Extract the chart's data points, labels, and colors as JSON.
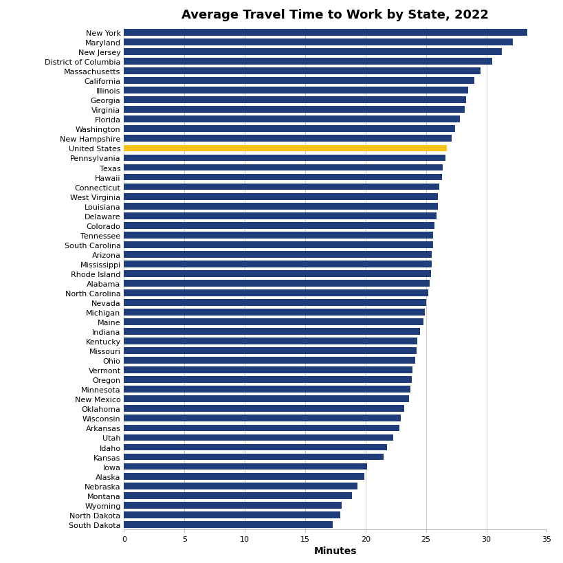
{
  "title": "Average Travel Time to Work by State, 2022",
  "xlabel": "Minutes",
  "states": [
    "New York",
    "Maryland",
    "New Jersey",
    "District of Columbia",
    "Massachusetts",
    "California",
    "Illinois",
    "Georgia",
    "Virginia",
    "Florida",
    "Washington",
    "New Hampshire",
    "United States",
    "Pennsylvania",
    "Texas",
    "Hawaii",
    "Connecticut",
    "West Virginia",
    "Louisiana",
    "Delaware",
    "Colorado",
    "Tennessee",
    "South Carolina",
    "Arizona",
    "Mississippi",
    "Rhode Island",
    "Alabama",
    "North Carolina",
    "Nevada",
    "Michigan",
    "Maine",
    "Indiana",
    "Kentucky",
    "Missouri",
    "Ohio",
    "Vermont",
    "Oregon",
    "Minnesota",
    "New Mexico",
    "Oklahoma",
    "Wisconsin",
    "Arkansas",
    "Utah",
    "Idaho",
    "Kansas",
    "Iowa",
    "Alaska",
    "Nebraska",
    "Montana",
    "Wyoming",
    "North Dakota",
    "South Dakota"
  ],
  "values": [
    33.4,
    32.2,
    31.3,
    30.5,
    29.5,
    29.0,
    28.5,
    28.3,
    28.2,
    27.8,
    27.4,
    27.1,
    26.7,
    26.6,
    26.4,
    26.3,
    26.1,
    26.0,
    26.0,
    25.9,
    25.7,
    25.6,
    25.6,
    25.5,
    25.5,
    25.4,
    25.3,
    25.2,
    25.0,
    24.9,
    24.8,
    24.5,
    24.3,
    24.2,
    24.1,
    23.9,
    23.8,
    23.7,
    23.6,
    23.2,
    22.9,
    22.8,
    22.3,
    21.8,
    21.5,
    20.1,
    19.9,
    19.3,
    18.9,
    18.0,
    17.9,
    17.3
  ],
  "highlight_state": "United States",
  "bar_color": "#1F3D7A",
  "highlight_color": "#F5C518",
  "background_color": "#FFFFFF",
  "title_fontsize": 13,
  "tick_fontsize": 8,
  "xlabel_fontsize": 10,
  "xlim": [
    0,
    35
  ],
  "xticks": [
    0,
    5,
    10,
    15,
    20,
    25,
    30,
    35
  ]
}
